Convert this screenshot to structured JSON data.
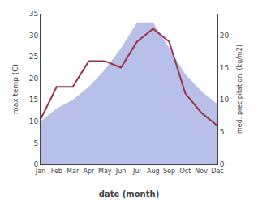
{
  "chart_data": {
    "type": "area",
    "categories": [
      "Jan",
      "Feb",
      "Mar",
      "Apr",
      "May",
      "Jun",
      "Jul",
      "Aug",
      "Sep",
      "Oct",
      "Nov",
      "Dec"
    ],
    "series": [
      {
        "type": "area",
        "color": "#b8bfe8",
        "values": [
          10,
          13,
          15,
          18,
          22,
          27,
          33,
          33,
          27,
          21,
          17,
          14
        ]
      },
      {
        "type": "line",
        "color": "#993344",
        "axis": "y2",
        "values": [
          7,
          12,
          12,
          16,
          16,
          15,
          19,
          21,
          19,
          11,
          8,
          6
        ]
      }
    ],
    "xlabel": "date (month)",
    "ylabel": "max temp (C)",
    "y2label": "med. precipitation  (kg/m2)",
    "ylim": [
      0,
      35
    ],
    "yticks": [
      0,
      5,
      10,
      15,
      20,
      25,
      30,
      35
    ],
    "y2lim": [
      0,
      23.33
    ],
    "y2ticks": [
      0,
      5,
      10,
      15,
      20
    ],
    "grid": false
  }
}
